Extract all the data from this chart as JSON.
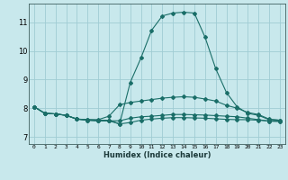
{
  "title": "",
  "xlabel": "Humidex (Indice chaleur)",
  "bg_color": "#c8e8ec",
  "grid_color": "#a0ccd4",
  "line_color": "#1a6e68",
  "xlim": [
    -0.5,
    23.5
  ],
  "ylim": [
    6.75,
    11.65
  ],
  "xticks": [
    0,
    1,
    2,
    3,
    4,
    5,
    6,
    7,
    8,
    9,
    10,
    11,
    12,
    13,
    14,
    15,
    16,
    17,
    18,
    19,
    20,
    21,
    22,
    23
  ],
  "yticks": [
    7,
    8,
    9,
    10,
    11
  ],
  "series": [
    [
      8.05,
      7.82,
      7.8,
      7.75,
      7.62,
      7.6,
      7.58,
      7.58,
      7.45,
      8.9,
      9.75,
      10.72,
      11.22,
      11.32,
      11.35,
      11.32,
      10.48,
      9.38,
      8.55,
      8.05,
      7.82,
      7.75,
      7.6,
      7.58
    ],
    [
      8.05,
      7.82,
      7.8,
      7.75,
      7.62,
      7.6,
      7.6,
      7.72,
      8.12,
      8.2,
      8.25,
      8.3,
      8.35,
      8.38,
      8.4,
      8.38,
      8.32,
      8.25,
      8.1,
      8.0,
      7.85,
      7.78,
      7.62,
      7.58
    ],
    [
      8.05,
      7.82,
      7.8,
      7.75,
      7.62,
      7.58,
      7.56,
      7.56,
      7.56,
      7.65,
      7.7,
      7.72,
      7.75,
      7.78,
      7.78,
      7.77,
      7.76,
      7.74,
      7.72,
      7.7,
      7.65,
      7.6,
      7.55,
      7.54
    ],
    [
      8.05,
      7.82,
      7.8,
      7.75,
      7.62,
      7.58,
      7.56,
      7.56,
      7.45,
      7.5,
      7.58,
      7.62,
      7.65,
      7.67,
      7.67,
      7.66,
      7.65,
      7.63,
      7.61,
      7.6,
      7.6,
      7.58,
      7.55,
      7.54
    ]
  ]
}
